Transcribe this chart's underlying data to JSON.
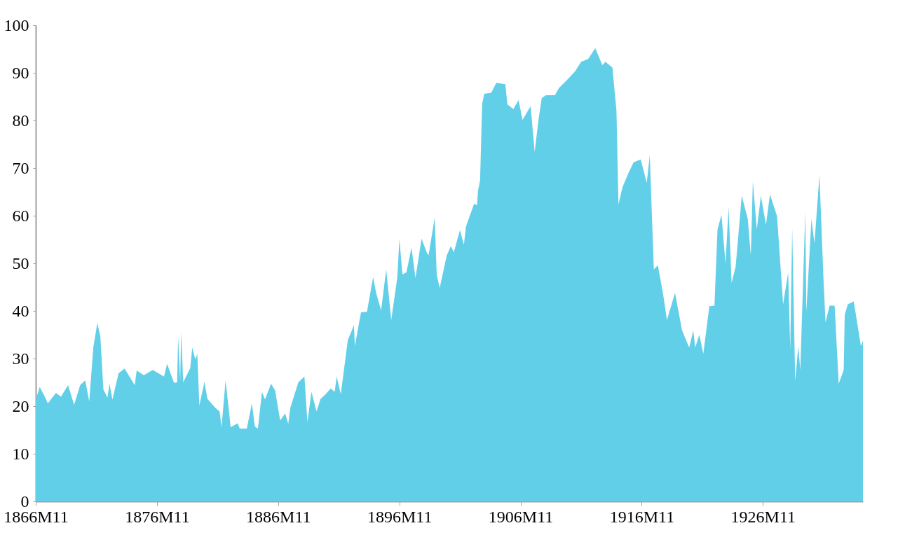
{
  "chart_data": {
    "type": "area",
    "ylim": [
      0,
      100
    ],
    "yticks": [
      0,
      10,
      20,
      30,
      40,
      50,
      60,
      70,
      80,
      90,
      100
    ],
    "xlim": [
      "1866-11",
      "1935-02"
    ],
    "xticks": [
      {
        "value": "1866-11",
        "label": "1866M11"
      },
      {
        "value": "1876-11",
        "label": "1876M11"
      },
      {
        "value": "1886-11",
        "label": "1886M11"
      },
      {
        "value": "1896-11",
        "label": "1896M11"
      },
      {
        "value": "1906-11",
        "label": "1906M11"
      },
      {
        "value": "1916-11",
        "label": "1916M11"
      },
      {
        "value": "1926-11",
        "label": "1926M11"
      }
    ],
    "grid": false,
    "legend": false,
    "series": [
      {
        "color": "#62cfe8",
        "x": [
          "1866-11",
          "1867-03",
          "1867-08",
          "1867-11",
          "1868-07",
          "1868-12",
          "1869-07",
          "1870-01",
          "1870-07",
          "1870-12",
          "1871-04",
          "1871-08",
          "1871-12",
          "1872-03",
          "1872-06",
          "1872-10",
          "1872-12",
          "1873-03",
          "1873-09",
          "1874-03",
          "1875-01",
          "1875-03",
          "1875-10",
          "1876-07",
          "1877-06",
          "1877-09",
          "1878-04",
          "1878-07",
          "1878-08",
          "1878-10",
          "1878-11",
          "1879-01",
          "1879-08",
          "1879-10",
          "1880-01",
          "1880-03",
          "1880-05",
          "1880-10",
          "1881-01",
          "1881-09",
          "1882-01",
          "1882-03",
          "1882-07",
          "1882-12",
          "1883-07",
          "1883-09",
          "1884-04",
          "1884-09",
          "1884-12",
          "1885-03",
          "1885-07",
          "1885-10",
          "1886-04",
          "1886-08",
          "1887-01",
          "1887-06",
          "1887-09",
          "1887-11",
          "1888-07",
          "1889-01",
          "1889-04",
          "1889-08",
          "1890-01",
          "1890-05",
          "1890-10",
          "1891-03",
          "1891-07",
          "1891-09",
          "1892-01",
          "1892-08",
          "1893-02",
          "1893-03",
          "1893-09",
          "1894-03",
          "1894-09",
          "1894-12",
          "1895-05",
          "1895-10",
          "1896-03",
          "1896-09",
          "1896-11",
          "1897-02",
          "1897-06",
          "1897-11",
          "1898-03",
          "1898-09",
          "1899-02",
          "1899-04",
          "1899-10",
          "1899-12",
          "1900-03",
          "1900-10",
          "1901-02",
          "1901-05",
          "1901-11",
          "1902-03",
          "1902-05",
          "1903-01",
          "1903-04",
          "1903-05",
          "1903-07",
          "1903-09",
          "1903-11",
          "1904-06",
          "1904-11",
          "1905-08",
          "1905-10",
          "1906-04",
          "1906-09",
          "1907-01",
          "1907-09",
          "1908-01",
          "1908-05",
          "1908-08",
          "1908-12",
          "1909-09",
          "1910-01",
          "1910-10",
          "1911-05",
          "1911-11",
          "1912-06",
          "1913-01",
          "1913-08",
          "1913-11",
          "1914-06",
          "1914-10",
          "1914-12",
          "1915-04",
          "1915-10",
          "1916-03",
          "1916-10",
          "1917-04",
          "1917-07",
          "1917-11",
          "1918-03",
          "1918-08",
          "1918-12",
          "1919-08",
          "1920-03",
          "1920-10",
          "1921-02",
          "1921-04",
          "1921-08",
          "1921-12",
          "1922-06",
          "1922-11",
          "1923-02",
          "1923-06",
          "1923-10",
          "1924-01",
          "1924-04",
          "1924-08",
          "1925-02",
          "1925-08",
          "1925-11",
          "1926-01",
          "1926-05",
          "1926-09",
          "1927-02",
          "1927-06",
          "1928-01",
          "1928-07",
          "1928-12",
          "1929-02",
          "1929-04",
          "1929-07",
          "1929-10",
          "1929-12",
          "1930-05",
          "1930-06",
          "1930-11",
          "1931-02",
          "1931-07",
          "1931-11",
          "1932-01",
          "1932-05",
          "1932-10",
          "1933-02",
          "1933-07",
          "1933-08",
          "1933-11",
          "1934-05",
          "1934-12",
          "1935-02"
        ],
        "values": [
          21.4,
          24,
          22,
          20.6,
          22.8,
          22,
          24.4,
          20.3,
          24.4,
          25.4,
          21,
          32.3,
          37.5,
          34.6,
          23.5,
          21.8,
          24.7,
          21.4,
          26.9,
          27.9,
          24.4,
          27.5,
          26.5,
          27.6,
          26.2,
          28.9,
          24.9,
          25,
          34.6,
          25.4,
          35.6,
          25,
          28,
          32.3,
          29.8,
          31,
          20.1,
          25.1,
          21.5,
          19.6,
          18.9,
          15.6,
          25.4,
          15.6,
          16.4,
          15.3,
          15.3,
          20.6,
          15.7,
          15.3,
          23,
          21.4,
          24.7,
          23.3,
          17,
          18.5,
          16.3,
          19.6,
          25,
          26.2,
          16.7,
          23,
          18.9,
          21.5,
          22.5,
          23.7,
          23,
          26.2,
          22.5,
          33.9,
          37,
          32.6,
          39.7,
          39.8,
          47.1,
          43.8,
          40.1,
          48.7,
          38.1,
          47.1,
          55.2,
          47.7,
          48.1,
          53.3,
          46.9,
          55.2,
          52.3,
          51.7,
          59.6,
          47.7,
          44.8,
          51.7,
          53.6,
          52.3,
          57,
          53.9,
          57.7,
          62.5,
          62.2,
          65.3,
          67.4,
          83.4,
          85.6,
          85.8,
          87.9,
          87.6,
          83.4,
          82.4,
          84.3,
          80.1,
          83,
          73.4,
          80.4,
          84.7,
          85.3,
          85.3,
          86.8,
          88.7,
          90.3,
          92.3,
          92.9,
          95.2,
          91.6,
          92.3,
          91.1,
          82.1,
          62.4,
          66,
          69,
          71.2,
          71.8,
          66.9,
          72.7,
          48.7,
          49.6,
          43.8,
          38.1,
          43.8,
          35.9,
          32.3,
          35.9,
          32.3,
          35,
          31,
          41,
          41.1,
          57.1,
          60.2,
          49.9,
          61.8,
          45.9,
          49.3,
          64.2,
          59.3,
          51.7,
          67.2,
          57.1,
          64.2,
          58.1,
          64.5,
          59.9,
          41.4,
          48.1,
          32,
          57.4,
          25.3,
          32.6,
          27.6,
          60.9,
          39.8,
          59.3,
          54.2,
          68.5,
          46.5,
          37.6,
          41.1,
          41.1,
          24.7,
          27.6,
          39.2,
          41.4,
          42,
          32.6,
          33.7
        ]
      }
    ]
  }
}
